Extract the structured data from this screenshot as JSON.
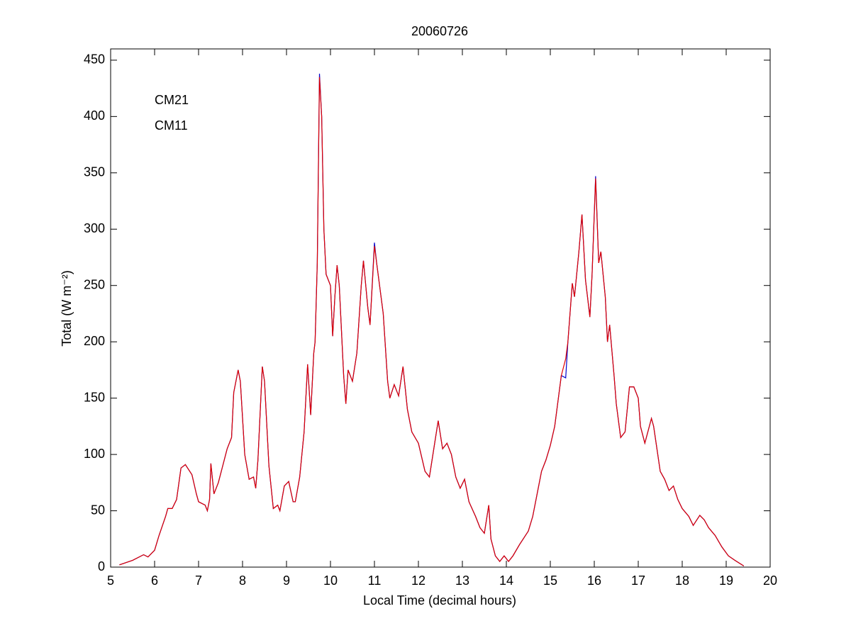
{
  "chart_data": {
    "type": "line",
    "title": "20060726",
    "x_label": "Local Time (decimal hours)",
    "y_label": "Total (W m⁻²)",
    "xlim": [
      5,
      20
    ],
    "ylim": [
      0,
      460
    ],
    "xticks": [
      5,
      6,
      7,
      8,
      9,
      10,
      11,
      12,
      13,
      14,
      15,
      16,
      17,
      18,
      19,
      20
    ],
    "yticks": [
      0,
      50,
      100,
      150,
      200,
      250,
      300,
      350,
      400,
      450
    ],
    "legend": "upper left",
    "x": [
      5.2,
      5.5,
      5.75,
      5.85,
      6.0,
      6.1,
      6.25,
      6.3,
      6.4,
      6.5,
      6.6,
      6.7,
      6.85,
      6.95,
      7.0,
      7.15,
      7.2,
      7.25,
      7.28,
      7.35,
      7.45,
      7.55,
      7.65,
      7.75,
      7.8,
      7.9,
      7.95,
      8.05,
      8.15,
      8.25,
      8.3,
      8.35,
      8.45,
      8.5,
      8.6,
      8.7,
      8.8,
      8.85,
      8.95,
      9.05,
      9.15,
      9.2,
      9.3,
      9.4,
      9.48,
      9.55,
      9.62,
      9.65,
      9.7,
      9.75,
      9.8,
      9.85,
      9.9,
      10.0,
      10.05,
      10.1,
      10.15,
      10.2,
      10.3,
      10.35,
      10.4,
      10.5,
      10.6,
      10.7,
      10.75,
      10.85,
      10.9,
      11.0,
      11.05,
      11.15,
      11.2,
      11.3,
      11.35,
      11.45,
      11.55,
      11.65,
      11.75,
      11.85,
      12.0,
      12.15,
      12.25,
      12.35,
      12.45,
      12.55,
      12.65,
      12.75,
      12.85,
      12.95,
      13.05,
      13.15,
      13.3,
      13.4,
      13.5,
      13.6,
      13.65,
      13.75,
      13.85,
      13.95,
      14.05,
      14.15,
      14.3,
      14.5,
      14.6,
      14.7,
      14.8,
      14.9,
      15.0,
      15.1,
      15.15,
      15.25,
      15.35,
      15.4,
      15.5,
      15.55,
      15.65,
      15.72,
      15.8,
      15.9,
      15.95,
      16.03,
      16.1,
      16.15,
      16.25,
      16.3,
      16.35,
      16.45,
      16.5,
      16.6,
      16.7,
      16.8,
      16.9,
      17.0,
      17.05,
      17.15,
      17.3,
      17.35,
      17.5,
      17.6,
      17.7,
      17.8,
      17.9,
      18.0,
      18.15,
      18.25,
      18.4,
      18.5,
      18.6,
      18.75,
      18.9,
      19.05,
      19.2,
      19.4
    ],
    "series": [
      {
        "name": "CM21",
        "color": "#0000cc",
        "values": [
          2,
          6,
          11,
          9,
          15,
          28,
          45,
          52,
          52,
          60,
          88,
          91,
          82,
          65,
          58,
          55,
          50,
          60,
          92,
          65,
          75,
          90,
          105,
          115,
          155,
          175,
          165,
          100,
          78,
          80,
          70,
          95,
          178,
          165,
          90,
          52,
          55,
          50,
          72,
          76,
          58,
          58,
          80,
          120,
          180,
          135,
          190,
          200,
          270,
          438,
          400,
          300,
          260,
          250,
          205,
          240,
          268,
          250,
          170,
          145,
          175,
          165,
          190,
          250,
          272,
          230,
          215,
          288,
          270,
          240,
          225,
          165,
          150,
          162,
          152,
          178,
          140,
          120,
          110,
          85,
          80,
          105,
          130,
          105,
          110,
          100,
          80,
          70,
          78,
          58,
          45,
          35,
          30,
          55,
          25,
          10,
          5,
          10,
          5,
          10,
          20,
          32,
          45,
          65,
          85,
          95,
          108,
          125,
          140,
          170,
          168,
          200,
          252,
          240,
          280,
          313,
          255,
          222,
          260,
          347,
          270,
          280,
          240,
          200,
          215,
          170,
          145,
          115,
          120,
          160,
          160,
          150,
          125,
          110,
          132,
          125,
          85,
          78,
          68,
          72,
          60,
          52,
          45,
          37,
          46,
          42,
          35,
          28,
          18,
          10,
          6,
          1
        ]
      },
      {
        "name": "CM11",
        "color": "#e00000",
        "values": [
          2,
          6,
          11,
          9,
          15,
          28,
          45,
          52,
          52,
          60,
          88,
          91,
          82,
          65,
          58,
          55,
          50,
          60,
          92,
          65,
          75,
          90,
          105,
          115,
          155,
          175,
          165,
          100,
          78,
          80,
          70,
          95,
          178,
          165,
          90,
          52,
          55,
          50,
          72,
          76,
          58,
          58,
          80,
          120,
          180,
          135,
          190,
          200,
          270,
          435,
          400,
          300,
          260,
          250,
          205,
          240,
          268,
          250,
          170,
          145,
          175,
          165,
          190,
          250,
          272,
          230,
          215,
          285,
          270,
          240,
          225,
          165,
          150,
          162,
          152,
          178,
          140,
          120,
          110,
          85,
          80,
          105,
          130,
          105,
          110,
          100,
          80,
          70,
          78,
          58,
          45,
          35,
          30,
          55,
          25,
          10,
          5,
          10,
          5,
          10,
          20,
          32,
          45,
          65,
          85,
          95,
          108,
          125,
          140,
          170,
          185,
          200,
          252,
          240,
          280,
          313,
          255,
          222,
          260,
          345,
          270,
          280,
          240,
          200,
          215,
          170,
          145,
          115,
          120,
          160,
          160,
          150,
          125,
          110,
          132,
          125,
          85,
          78,
          68,
          72,
          60,
          52,
          45,
          37,
          46,
          42,
          35,
          28,
          18,
          10,
          6,
          1
        ]
      }
    ]
  }
}
